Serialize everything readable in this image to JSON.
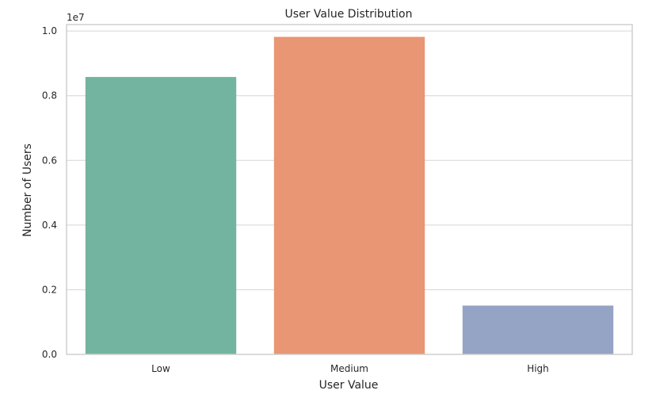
{
  "chart_data": {
    "type": "bar",
    "title": "User Value Distribution",
    "xlabel": "User Value",
    "ylabel": "Number of Users",
    "offset_label": "1e7",
    "categories": [
      "Low",
      "Medium",
      "High"
    ],
    "values": [
      8580000,
      9820000,
      1510000
    ],
    "ylim": [
      0,
      10200000
    ],
    "yticks": [
      0,
      2000000,
      4000000,
      6000000,
      8000000,
      10000000
    ],
    "ytick_labels": [
      "0.0",
      "0.2",
      "0.4",
      "0.6",
      "0.8",
      "1.0"
    ],
    "colors": [
      "#72b49f",
      "#e89673",
      "#95a4c4"
    ],
    "grid": true,
    "grid_color": "#d5d5d5",
    "spine_color": "#cfcfcf"
  }
}
